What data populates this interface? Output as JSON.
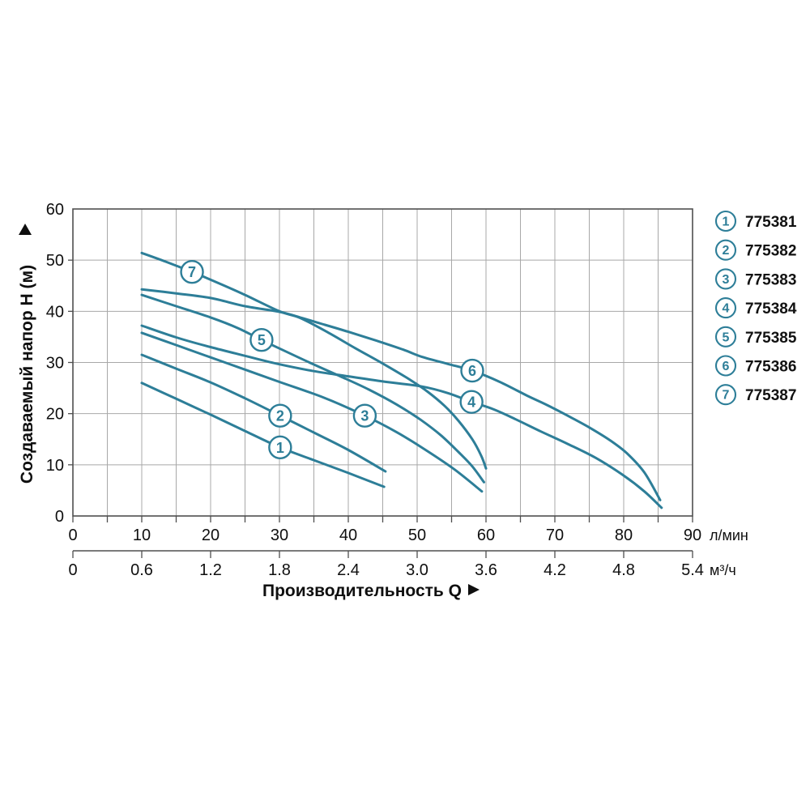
{
  "chart_data": {
    "type": "line",
    "title": "",
    "x_axis": {
      "label": "Производительность Q",
      "arrow": "►",
      "primary_unit": "л/мин",
      "primary_ticks": [
        0,
        10,
        20,
        30,
        40,
        50,
        60,
        70,
        80,
        90
      ],
      "primary_range": [
        0,
        90
      ],
      "grid_step": 5,
      "secondary_unit": "м³/ч",
      "secondary_ticks": [
        "0",
        "0.6",
        "1.2",
        "1.8",
        "2.4",
        "3.0",
        "3.6",
        "4.2",
        "4.8",
        "5.4"
      ]
    },
    "y_axis": {
      "label": "Создаваемый напор H (м)",
      "arrow": "▲",
      "ticks": [
        0,
        10,
        20,
        30,
        40,
        50,
        60
      ],
      "range": [
        0,
        60
      ],
      "grid_step": 10
    },
    "legend_position": "right",
    "grid": true,
    "series": [
      {
        "id": "1",
        "model": "775381",
        "label_at": [
          30.1,
          13.4
        ],
        "points": [
          [
            10,
            26
          ],
          [
            15,
            22.9
          ],
          [
            20,
            19.8
          ],
          [
            25,
            16.6
          ],
          [
            30.1,
            13.4
          ],
          [
            35,
            10.9
          ],
          [
            40,
            8.4
          ],
          [
            45.2,
            5.7
          ]
        ]
      },
      {
        "id": "2",
        "model": "775382",
        "label_at": [
          30.1,
          19.6
        ],
        "points": [
          [
            10,
            31.5
          ],
          [
            15,
            28.8
          ],
          [
            20,
            26.1
          ],
          [
            25,
            23
          ],
          [
            30.1,
            19.6
          ],
          [
            35,
            16.3
          ],
          [
            40,
            12.9
          ],
          [
            45.4,
            8.7
          ]
        ]
      },
      {
        "id": "3",
        "model": "775383",
        "label_at": [
          42.4,
          19.6
        ],
        "points": [
          [
            10,
            35.8
          ],
          [
            15,
            33.4
          ],
          [
            20,
            31
          ],
          [
            25,
            28.6
          ],
          [
            30,
            26.2
          ],
          [
            36.5,
            23.1
          ],
          [
            42.4,
            19.6
          ],
          [
            47,
            16.4
          ],
          [
            51,
            13.1
          ],
          [
            55.5,
            9
          ],
          [
            59.4,
            4.8
          ]
        ]
      },
      {
        "id": "4",
        "model": "775384",
        "label_at": [
          57.9,
          22.3
        ],
        "points": [
          [
            10,
            37.2
          ],
          [
            15,
            34.9
          ],
          [
            20,
            33
          ],
          [
            25,
            31.3
          ],
          [
            29.5,
            29.8
          ],
          [
            35,
            28.3
          ],
          [
            40,
            27.3
          ],
          [
            45,
            26.3
          ],
          [
            50.7,
            25.3
          ],
          [
            54.5,
            24
          ],
          [
            57.9,
            22.3
          ],
          [
            61,
            20.9
          ],
          [
            64,
            19.1
          ],
          [
            68,
            16.5
          ],
          [
            72,
            14
          ],
          [
            76,
            11.3
          ],
          [
            80,
            7.9
          ],
          [
            83,
            4.8
          ],
          [
            85.5,
            1.6
          ]
        ]
      },
      {
        "id": "5",
        "model": "775385",
        "label_at": [
          27.4,
          34.4
        ],
        "points": [
          [
            10,
            43.2
          ],
          [
            15,
            41
          ],
          [
            20,
            38.8
          ],
          [
            24,
            36.7
          ],
          [
            27.4,
            34.4
          ],
          [
            31,
            32.1
          ],
          [
            35,
            29.6
          ],
          [
            39,
            27.2
          ],
          [
            43,
            24.7
          ],
          [
            47,
            21.8
          ],
          [
            50.5,
            18.8
          ],
          [
            53.5,
            15.7
          ],
          [
            56,
            12.5
          ],
          [
            58,
            9.7
          ],
          [
            59.7,
            6.6
          ]
        ]
      },
      {
        "id": "6",
        "model": "775386",
        "label_at": [
          58,
          28.4
        ],
        "points": [
          [
            10,
            44.3
          ],
          [
            15,
            43.5
          ],
          [
            20,
            42.6
          ],
          [
            25,
            41
          ],
          [
            30,
            39.9
          ],
          [
            33,
            38.8
          ],
          [
            36,
            37.6
          ],
          [
            40,
            36
          ],
          [
            44,
            34.3
          ],
          [
            48,
            32.5
          ],
          [
            50.7,
            31.1
          ],
          [
            54.5,
            29.7
          ],
          [
            58,
            28.4
          ],
          [
            62,
            26.2
          ],
          [
            66,
            23.5
          ],
          [
            69,
            21.6
          ],
          [
            72,
            19.5
          ],
          [
            75,
            17.3
          ],
          [
            78,
            14.8
          ],
          [
            80.5,
            12.2
          ],
          [
            83,
            8.5
          ],
          [
            85.3,
            3.1
          ]
        ]
      },
      {
        "id": "7",
        "model": "775387",
        "label_at": [
          17.3,
          47.7
        ],
        "points": [
          [
            10,
            51.4
          ],
          [
            13.5,
            49.7
          ],
          [
            17.3,
            47.7
          ],
          [
            21,
            45.6
          ],
          [
            25,
            43.2
          ],
          [
            30,
            40
          ],
          [
            33,
            38.7
          ],
          [
            37,
            35.9
          ],
          [
            41,
            32.8
          ],
          [
            45,
            29.8
          ],
          [
            48.5,
            27
          ],
          [
            51.5,
            24.3
          ],
          [
            54,
            21.5
          ],
          [
            56,
            18.6
          ],
          [
            58,
            15
          ],
          [
            59.3,
            11.8
          ],
          [
            60,
            9.3
          ]
        ]
      }
    ],
    "colors": {
      "curve": "#2d7e98",
      "grid": "#a8a8a8",
      "frame": "#4f4f4f",
      "text": "#0f0f0f",
      "label_circle_fill": "#ffffff"
    }
  }
}
